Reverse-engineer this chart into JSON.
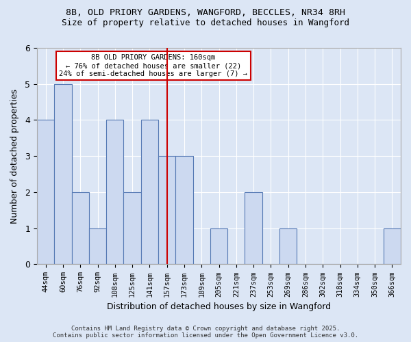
{
  "title_line1": "8B, OLD PRIORY GARDENS, WANGFORD, BECCLES, NR34 8RH",
  "title_line2": "Size of property relative to detached houses in Wangford",
  "xlabel": "Distribution of detached houses by size in Wangford",
  "ylabel": "Number of detached properties",
  "categories": [
    "44sqm",
    "60sqm",
    "76sqm",
    "92sqm",
    "108sqm",
    "125sqm",
    "141sqm",
    "157sqm",
    "173sqm",
    "189sqm",
    "205sqm",
    "221sqm",
    "237sqm",
    "253sqm",
    "269sqm",
    "286sqm",
    "302sqm",
    "318sqm",
    "334sqm",
    "350sqm",
    "366sqm"
  ],
  "values": [
    4,
    5,
    2,
    1,
    4,
    2,
    4,
    3,
    3,
    0,
    1,
    0,
    2,
    0,
    1,
    0,
    0,
    0,
    0,
    0,
    1
  ],
  "bar_color": "#ccd9f0",
  "bar_edge_color": "#5579b4",
  "highlight_index": 7,
  "highlight_line_color": "#cc0000",
  "annotation_title": "8B OLD PRIORY GARDENS: 160sqm",
  "annotation_line2": "← 76% of detached houses are smaller (22)",
  "annotation_line3": "24% of semi-detached houses are larger (7) →",
  "annotation_box_color": "#cc0000",
  "ylim": [
    0,
    6
  ],
  "yticks": [
    0,
    1,
    2,
    3,
    4,
    5,
    6
  ],
  "background_color": "#dce6f5",
  "footer_line1": "Contains HM Land Registry data © Crown copyright and database right 2025.",
  "footer_line2": "Contains public sector information licensed under the Open Government Licence v3.0."
}
